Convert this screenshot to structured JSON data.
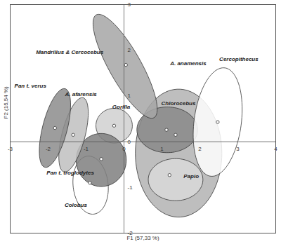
{
  "chart_data": {
    "type": "scatter",
    "x_label": "F1 (57,33 %)",
    "y_label": "F2 (15,54 %)",
    "xlim": [
      -3,
      4
    ],
    "ylim": [
      -2,
      3
    ],
    "xticks": [
      -3,
      -2,
      -1,
      0,
      1,
      2,
      3,
      4
    ],
    "yticks": [
      -2,
      -1,
      0,
      1,
      2,
      3
    ],
    "grid": false,
    "series": [
      {
        "name": "A. anamensis",
        "color": "#b3b3b3",
        "x": 1.36,
        "y": 0.15,
        "ellipse": {
          "cx": 1.44,
          "cy": -0.25,
          "rx": 1.14,
          "ry": 1.4,
          "angle": 0
        }
      },
      {
        "name": "Chlorocebus",
        "color": "#8a8a8a",
        "x": 1.12,
        "y": 0.26,
        "ellipse": {
          "cx": 1.14,
          "cy": 0.26,
          "rx": 0.8,
          "ry": 0.5,
          "angle": 0
        }
      },
      {
        "name": "Papio",
        "color": "#d9d9d9",
        "x": 1.2,
        "y": -0.73,
        "ellipse": {
          "cx": 1.36,
          "cy": -0.83,
          "rx": 0.72,
          "ry": 0.46,
          "angle": 0
        }
      },
      {
        "name": "Cercopithecus",
        "color": "#ffffff",
        "x": 2.47,
        "y": 0.43,
        "ellipse": {
          "cx": 2.47,
          "cy": 0.43,
          "rx": 1.2,
          "ry": 0.62,
          "angle": 80
        }
      },
      {
        "name": "Mandrillus & Cercocebus",
        "color": "#a6a6a6",
        "x": 0.05,
        "y": 1.68,
        "ellipse": {
          "cx": 0.03,
          "cy": 1.65,
          "rx": 1.36,
          "ry": 0.4,
          "angle": 125
        }
      },
      {
        "name": "Gorilla",
        "color": "#d0d0d0",
        "x": -0.26,
        "y": 0.35,
        "ellipse": {
          "cx": -0.26,
          "cy": 0.35,
          "rx": 0.48,
          "ry": 0.38,
          "angle": 0
        }
      },
      {
        "name": "Colobus",
        "color": "#ffffff",
        "x": -0.9,
        "y": -0.9,
        "ellipse": {
          "cx": -0.88,
          "cy": -0.95,
          "rx": 0.64,
          "ry": 0.46,
          "angle": 100
        }
      },
      {
        "name": "Pan t. troglodytes",
        "color": "#7f7f7f",
        "x": -0.6,
        "y": -0.38,
        "ellipse": {
          "cx": -0.6,
          "cy": -0.4,
          "rx": 0.66,
          "ry": 0.58,
          "angle": 0
        }
      },
      {
        "name": "A. afarensis",
        "color": "#bfbfbf",
        "x": -1.34,
        "y": 0.15,
        "ellipse": {
          "cx": -1.33,
          "cy": 0.15,
          "rx": 0.85,
          "ry": 0.3,
          "angle": 72
        }
      },
      {
        "name": "Pan t. verus",
        "color": "#8c8c8c",
        "x": -1.82,
        "y": 0.3,
        "ellipse": {
          "cx": -1.82,
          "cy": 0.3,
          "rx": 0.9,
          "ry": 0.32,
          "angle": 72
        }
      }
    ]
  }
}
